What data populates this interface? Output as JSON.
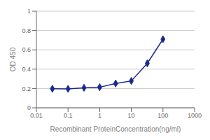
{
  "chart_data": {
    "type": "line",
    "x": [
      0.032,
      0.1,
      0.32,
      1,
      3.2,
      10,
      32,
      100
    ],
    "values": [
      0.197,
      0.196,
      0.207,
      0.213,
      0.252,
      0.278,
      0.46,
      0.71
    ],
    "color": "#1a2a8a",
    "marker": "diamond",
    "xlabel": "Recombinant ProteinConcentration(ng/ml)",
    "ylabel": "OD 450",
    "log": "x",
    "xlim": [
      0.01,
      1000
    ],
    "xticks": [
      0.01,
      0.1,
      1,
      10,
      100,
      1000
    ],
    "ylim": [
      0,
      1
    ],
    "yticks": [
      0,
      0.2,
      0.4,
      0.6,
      0.8,
      1
    ],
    "grid": "y"
  }
}
